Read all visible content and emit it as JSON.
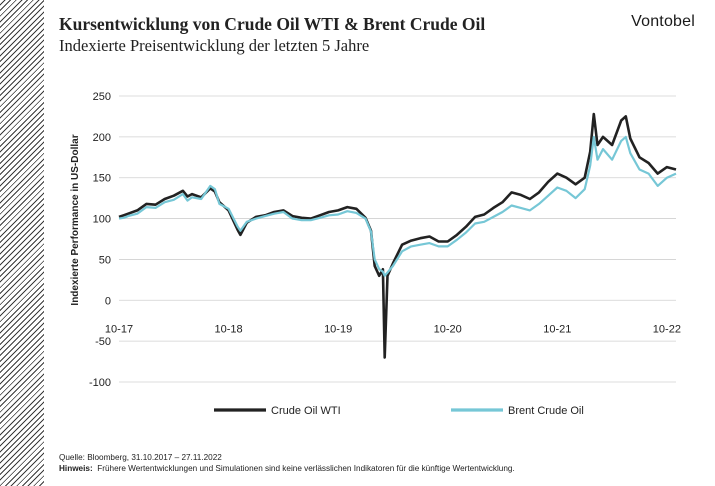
{
  "header": {
    "title": "Kursentwicklung von Crude Oil WTI & Brent Crude Oil",
    "subtitle": "Indexierte Preisentwicklung der letzten 5 Jahre",
    "brand": "Vontobel"
  },
  "footer": {
    "source": "Quelle: Bloomberg, 31.10.2017 – 27.11.2022",
    "note_label": "Hinweis:",
    "note_text": "Frühere Wertentwicklungen und Simulationen sind keine verlässlichen Indikatoren für die künftige Wertentwicklung."
  },
  "colors": {
    "wti": "#222222",
    "brent": "#76c7d6",
    "grid": "#d0d0d0",
    "text": "#222222"
  },
  "chart_data": {
    "type": "line",
    "ylabel": "Indexierte Performance in US-Dollar",
    "xlabel": "",
    "ylim": [
      -100,
      250
    ],
    "yticks": [
      -100,
      -50,
      0,
      50,
      100,
      150,
      200,
      250
    ],
    "xlim": [
      0,
      61
    ],
    "xticks": [
      {
        "x": 0,
        "label": "10-17"
      },
      {
        "x": 12,
        "label": "10-18"
      },
      {
        "x": 24,
        "label": "10-19"
      },
      {
        "x": 36,
        "label": "10-20"
      },
      {
        "x": 48,
        "label": "10-21"
      },
      {
        "x": 60,
        "label": "10-22"
      }
    ],
    "grid": true,
    "legend": "bottom",
    "series": [
      {
        "name": "Crude Oil WTI",
        "points": [
          [
            0,
            102
          ],
          [
            0.5,
            104
          ],
          [
            1,
            106
          ],
          [
            2,
            110
          ],
          [
            3,
            118
          ],
          [
            4,
            117
          ],
          [
            5,
            124
          ],
          [
            6,
            128
          ],
          [
            7,
            134
          ],
          [
            7.5,
            127
          ],
          [
            8,
            130
          ],
          [
            9,
            126
          ],
          [
            10,
            137
          ],
          [
            10.5,
            133
          ],
          [
            11,
            120
          ],
          [
            12,
            110
          ],
          [
            13,
            86
          ],
          [
            13.3,
            80
          ],
          [
            14,
            95
          ],
          [
            15,
            102
          ],
          [
            16,
            104
          ],
          [
            17,
            108
          ],
          [
            18,
            110
          ],
          [
            19,
            103
          ],
          [
            20,
            101
          ],
          [
            21,
            100
          ],
          [
            22,
            104
          ],
          [
            23,
            108
          ],
          [
            24,
            110
          ],
          [
            25,
            114
          ],
          [
            26,
            112
          ],
          [
            27,
            101
          ],
          [
            27.6,
            85
          ],
          [
            28,
            42
          ],
          [
            28.5,
            30
          ],
          [
            28.9,
            38
          ],
          [
            29.1,
            -70
          ],
          [
            29.4,
            30
          ],
          [
            30,
            45
          ],
          [
            31,
            68
          ],
          [
            32,
            73
          ],
          [
            33,
            76
          ],
          [
            34,
            78
          ],
          [
            35,
            72
          ],
          [
            36,
            72
          ],
          [
            37,
            80
          ],
          [
            38,
            90
          ],
          [
            39,
            102
          ],
          [
            40,
            105
          ],
          [
            41,
            113
          ],
          [
            42,
            120
          ],
          [
            43,
            132
          ],
          [
            44,
            129
          ],
          [
            45,
            124
          ],
          [
            46,
            132
          ],
          [
            47,
            145
          ],
          [
            48,
            155
          ],
          [
            49,
            150
          ],
          [
            50,
            142
          ],
          [
            51,
            150
          ],
          [
            51.6,
            182
          ],
          [
            52,
            228
          ],
          [
            52.4,
            190
          ],
          [
            53,
            200
          ],
          [
            54,
            190
          ],
          [
            55,
            220
          ],
          [
            55.5,
            225
          ],
          [
            56,
            198
          ],
          [
            57,
            175
          ],
          [
            58,
            168
          ],
          [
            59,
            155
          ],
          [
            60,
            163
          ],
          [
            61,
            160
          ]
        ]
      },
      {
        "name": "Brent Crude Oil",
        "points": [
          [
            0,
            100
          ],
          [
            0.5,
            101
          ],
          [
            1,
            103
          ],
          [
            2,
            106
          ],
          [
            3,
            114
          ],
          [
            4,
            113
          ],
          [
            5,
            120
          ],
          [
            6,
            123
          ],
          [
            7,
            130
          ],
          [
            7.5,
            122
          ],
          [
            8,
            126
          ],
          [
            9,
            124
          ],
          [
            10,
            140
          ],
          [
            10.5,
            136
          ],
          [
            11,
            118
          ],
          [
            12,
            112
          ],
          [
            13,
            90
          ],
          [
            13.3,
            85
          ],
          [
            14,
            96
          ],
          [
            15,
            100
          ],
          [
            16,
            103
          ],
          [
            17,
            106
          ],
          [
            18,
            108
          ],
          [
            19,
            100
          ],
          [
            20,
            98
          ],
          [
            21,
            98
          ],
          [
            22,
            101
          ],
          [
            23,
            104
          ],
          [
            24,
            105
          ],
          [
            25,
            109
          ],
          [
            26,
            107
          ],
          [
            27,
            100
          ],
          [
            27.6,
            84
          ],
          [
            28,
            50
          ],
          [
            28.5,
            38
          ],
          [
            28.9,
            35
          ],
          [
            29.1,
            30
          ],
          [
            29.4,
            34
          ],
          [
            30,
            42
          ],
          [
            31,
            60
          ],
          [
            32,
            66
          ],
          [
            33,
            68
          ],
          [
            34,
            70
          ],
          [
            35,
            66
          ],
          [
            36,
            66
          ],
          [
            37,
            74
          ],
          [
            38,
            83
          ],
          [
            39,
            94
          ],
          [
            40,
            96
          ],
          [
            41,
            102
          ],
          [
            42,
            108
          ],
          [
            43,
            116
          ],
          [
            44,
            113
          ],
          [
            45,
            110
          ],
          [
            46,
            118
          ],
          [
            47,
            128
          ],
          [
            48,
            138
          ],
          [
            49,
            134
          ],
          [
            50,
            125
          ],
          [
            51,
            136
          ],
          [
            51.6,
            165
          ],
          [
            52,
            200
          ],
          [
            52.4,
            172
          ],
          [
            53,
            185
          ],
          [
            54,
            172
          ],
          [
            55,
            195
          ],
          [
            55.5,
            200
          ],
          [
            56,
            180
          ],
          [
            57,
            160
          ],
          [
            58,
            155
          ],
          [
            59,
            140
          ],
          [
            60,
            150
          ],
          [
            61,
            155
          ]
        ]
      }
    ]
  }
}
